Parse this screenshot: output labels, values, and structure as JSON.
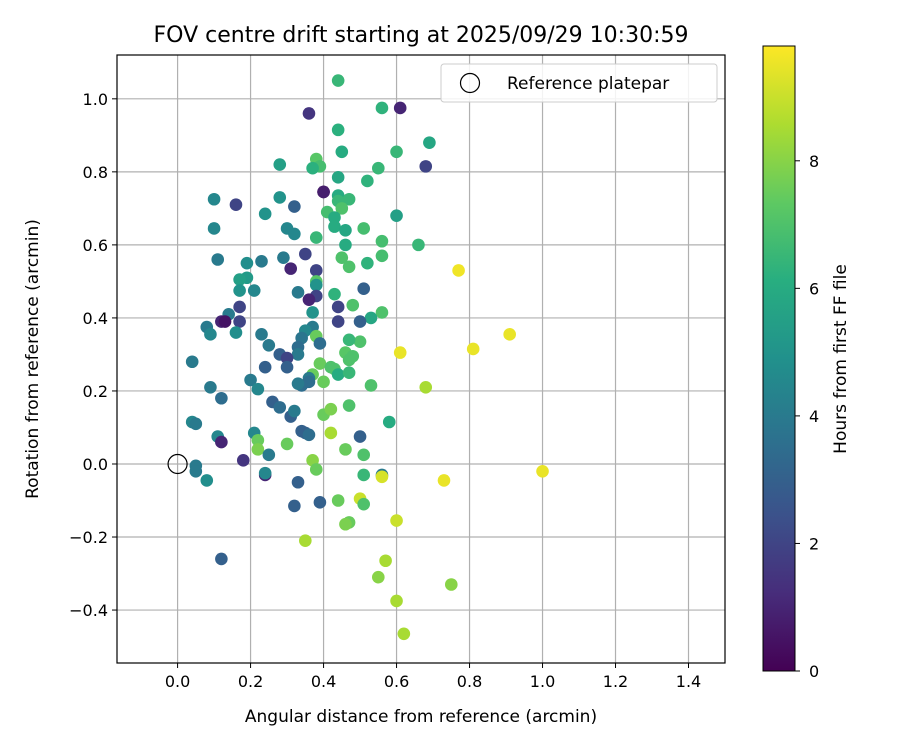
{
  "chart_data": {
    "type": "scatter",
    "title": "FOV centre drift starting at 2025/09/29 10:30:59",
    "xlabel": "Angular distance from reference (arcmin)",
    "ylabel": "Rotation from reference (arcmin)",
    "xlim": [
      -0.166,
      1.5
    ],
    "ylim": [
      -0.545,
      1.12
    ],
    "xticks": [
      0.0,
      0.2,
      0.4,
      0.6,
      0.8,
      1.0,
      1.2,
      1.4
    ],
    "xtick_labels": [
      "0.0",
      "0.2",
      "0.4",
      "0.6",
      "0.8",
      "1.0",
      "1.2",
      "1.4"
    ],
    "yticks": [
      -0.4,
      -0.2,
      0.0,
      0.2,
      0.4,
      0.6,
      0.8,
      1.0
    ],
    "ytick_labels": [
      "−0.4",
      "−0.2",
      "0.0",
      "0.2",
      "0.4",
      "0.6",
      "0.8",
      "1.0"
    ],
    "grid": true,
    "legend": {
      "position": "top-right",
      "entries": [
        "Reference platepar"
      ]
    },
    "reference_point": {
      "x": 0.0,
      "y": 0.0
    },
    "colorbar": {
      "label": "Hours from first FF file",
      "range": [
        0,
        9.8
      ],
      "ticks": [
        0,
        2,
        4,
        6,
        8
      ],
      "tick_labels": [
        "0",
        "2",
        "4",
        "6",
        "8"
      ],
      "colormap": "viridis"
    },
    "points": [
      [
        0.44,
        1.05,
        6.5
      ],
      [
        0.56,
        0.975,
        6.3
      ],
      [
        0.61,
        0.975,
        1.0
      ],
      [
        0.36,
        0.96,
        1.5
      ],
      [
        0.44,
        0.915,
        6.2
      ],
      [
        0.69,
        0.88,
        5.8
      ],
      [
        0.6,
        0.855,
        6.5
      ],
      [
        0.45,
        0.855,
        6.0
      ],
      [
        0.38,
        0.835,
        7.2
      ],
      [
        0.28,
        0.82,
        5.5
      ],
      [
        0.39,
        0.815,
        6.8
      ],
      [
        0.37,
        0.81,
        6.2
      ],
      [
        0.55,
        0.81,
        6.5
      ],
      [
        0.68,
        0.815,
        2.0
      ],
      [
        0.44,
        0.785,
        5.8
      ],
      [
        0.52,
        0.775,
        6.3
      ],
      [
        0.4,
        0.745,
        0.2
      ],
      [
        0.4,
        0.745,
        0.8
      ],
      [
        0.28,
        0.73,
        5.0
      ],
      [
        0.1,
        0.725,
        4.5
      ],
      [
        0.44,
        0.735,
        6.0
      ],
      [
        0.47,
        0.725,
        6.5
      ],
      [
        0.44,
        0.72,
        6.5
      ],
      [
        0.45,
        0.7,
        7.0
      ],
      [
        0.16,
        0.71,
        2.0
      ],
      [
        0.32,
        0.705,
        3.0
      ],
      [
        0.41,
        0.69,
        6.8
      ],
      [
        0.24,
        0.685,
        5.0
      ],
      [
        0.6,
        0.68,
        5.5
      ],
      [
        0.43,
        0.675,
        6.0
      ],
      [
        0.1,
        0.645,
        4.5
      ],
      [
        0.3,
        0.645,
        4.5
      ],
      [
        0.43,
        0.65,
        6.0
      ],
      [
        0.46,
        0.64,
        5.8
      ],
      [
        0.51,
        0.645,
        6.8
      ],
      [
        0.32,
        0.63,
        4.5
      ],
      [
        0.38,
        0.62,
        6.5
      ],
      [
        0.46,
        0.6,
        6.0
      ],
      [
        0.56,
        0.61,
        6.8
      ],
      [
        0.66,
        0.6,
        6.5
      ],
      [
        0.11,
        0.56,
        4.0
      ],
      [
        0.23,
        0.555,
        4.0
      ],
      [
        0.19,
        0.55,
        4.8
      ],
      [
        0.45,
        0.565,
        7.0
      ],
      [
        0.29,
        0.565,
        4.0
      ],
      [
        0.35,
        0.575,
        2.0
      ],
      [
        0.52,
        0.55,
        6.3
      ],
      [
        0.56,
        0.57,
        6.8
      ],
      [
        0.31,
        0.535,
        1.0
      ],
      [
        0.47,
        0.54,
        7.0
      ],
      [
        0.38,
        0.53,
        2.0
      ],
      [
        0.77,
        0.53,
        9.6
      ],
      [
        0.19,
        0.51,
        5.3
      ],
      [
        0.17,
        0.505,
        5.5
      ],
      [
        0.38,
        0.5,
        7.2
      ],
      [
        0.38,
        0.49,
        5.0
      ],
      [
        0.21,
        0.475,
        4.5
      ],
      [
        0.17,
        0.475,
        5.0
      ],
      [
        0.33,
        0.47,
        4.0
      ],
      [
        0.38,
        0.46,
        2.0
      ],
      [
        0.36,
        0.45,
        1.0
      ],
      [
        0.43,
        0.465,
        6.3
      ],
      [
        0.51,
        0.48,
        3.0
      ],
      [
        0.48,
        0.435,
        7.0
      ],
      [
        0.17,
        0.43,
        2.0
      ],
      [
        0.44,
        0.43,
        2.0
      ],
      [
        0.56,
        0.415,
        7.0
      ],
      [
        0.37,
        0.415,
        5.0
      ],
      [
        0.53,
        0.4,
        5.8
      ],
      [
        0.14,
        0.41,
        4.0
      ],
      [
        0.17,
        0.39,
        2.0
      ],
      [
        0.44,
        0.39,
        2.0
      ],
      [
        0.5,
        0.39,
        3.0
      ],
      [
        0.08,
        0.375,
        4.0
      ],
      [
        0.37,
        0.375,
        4.0
      ],
      [
        0.12,
        0.39,
        1.0
      ],
      [
        0.13,
        0.39,
        0.5
      ],
      [
        0.16,
        0.36,
        4.8
      ],
      [
        0.35,
        0.365,
        4.5
      ],
      [
        0.38,
        0.35,
        7.5
      ],
      [
        0.09,
        0.355,
        4.5
      ],
      [
        0.23,
        0.355,
        4.0
      ],
      [
        0.34,
        0.345,
        3.8
      ],
      [
        0.39,
        0.33,
        3.5
      ],
      [
        0.5,
        0.335,
        7.0
      ],
      [
        0.33,
        0.32,
        3.5
      ],
      [
        0.25,
        0.325,
        4.0
      ],
      [
        0.47,
        0.34,
        6.5
      ],
      [
        0.33,
        0.3,
        4.0
      ],
      [
        0.46,
        0.305,
        7.2
      ],
      [
        0.61,
        0.305,
        9.5
      ],
      [
        0.81,
        0.315,
        9.5
      ],
      [
        0.91,
        0.355,
        9.5
      ],
      [
        0.28,
        0.3,
        3.0
      ],
      [
        0.3,
        0.29,
        2.0
      ],
      [
        0.48,
        0.295,
        7.0
      ],
      [
        0.47,
        0.285,
        7.0
      ],
      [
        0.04,
        0.28,
        4.0
      ],
      [
        0.24,
        0.265,
        3.0
      ],
      [
        0.3,
        0.265,
        3.0
      ],
      [
        0.39,
        0.275,
        7.5
      ],
      [
        0.42,
        0.265,
        7.0
      ],
      [
        0.43,
        0.26,
        7.0
      ],
      [
        0.44,
        0.245,
        6.0
      ],
      [
        0.47,
        0.25,
        6.5
      ],
      [
        0.37,
        0.245,
        7.5
      ],
      [
        0.36,
        0.235,
        4.0
      ],
      [
        0.36,
        0.225,
        3.5
      ],
      [
        0.34,
        0.215,
        3.5
      ],
      [
        0.33,
        0.22,
        4.0
      ],
      [
        0.2,
        0.23,
        4.0
      ],
      [
        0.22,
        0.205,
        4.5
      ],
      [
        0.09,
        0.21,
        4.0
      ],
      [
        0.4,
        0.225,
        7.5
      ],
      [
        0.53,
        0.215,
        7.0
      ],
      [
        0.68,
        0.21,
        8.5
      ],
      [
        0.12,
        0.18,
        3.5
      ],
      [
        0.26,
        0.17,
        3.0
      ],
      [
        0.28,
        0.155,
        3.5
      ],
      [
        0.31,
        0.13,
        3.0
      ],
      [
        0.32,
        0.145,
        4.0
      ],
      [
        0.4,
        0.135,
        7.5
      ],
      [
        0.42,
        0.15,
        7.8
      ],
      [
        0.47,
        0.16,
        7.0
      ],
      [
        0.34,
        0.09,
        3.0
      ],
      [
        0.35,
        0.085,
        3.0
      ],
      [
        0.36,
        0.08,
        3.5
      ],
      [
        0.21,
        0.085,
        4.5
      ],
      [
        0.42,
        0.085,
        8.5
      ],
      [
        0.04,
        0.115,
        4.5
      ],
      [
        0.05,
        0.11,
        4.0
      ],
      [
        0.11,
        0.075,
        4.5
      ],
      [
        0.12,
        0.06,
        1.0
      ],
      [
        0.22,
        0.065,
        7.5
      ],
      [
        0.3,
        0.055,
        7.5
      ],
      [
        0.5,
        0.075,
        3.0
      ],
      [
        0.58,
        0.115,
        6.0
      ],
      [
        0.46,
        0.04,
        7.5
      ],
      [
        0.22,
        0.04,
        7.8
      ],
      [
        0.25,
        0.025,
        4.0
      ],
      [
        0.51,
        0.025,
        7.0
      ],
      [
        0.18,
        0.01,
        1.5
      ],
      [
        0.37,
        0.01,
        8.0
      ],
      [
        0.05,
        -0.005,
        4.0
      ],
      [
        0.38,
        -0.015,
        7.5
      ],
      [
        0.05,
        -0.02,
        4.0
      ],
      [
        0.24,
        -0.03,
        1.0
      ],
      [
        0.24,
        -0.025,
        4.5
      ],
      [
        0.51,
        -0.03,
        6.5
      ],
      [
        0.56,
        -0.03,
        4.0
      ],
      [
        0.56,
        -0.035,
        9.2
      ],
      [
        0.08,
        -0.045,
        4.8
      ],
      [
        0.33,
        -0.05,
        3.0
      ],
      [
        0.73,
        -0.045,
        9.5
      ],
      [
        1.0,
        -0.02,
        9.5
      ],
      [
        0.5,
        -0.095,
        9.0
      ],
      [
        0.44,
        -0.1,
        7.5
      ],
      [
        0.51,
        -0.11,
        7.0
      ],
      [
        0.32,
        -0.115,
        3.0
      ],
      [
        0.39,
        -0.105,
        3.0
      ],
      [
        0.6,
        -0.155,
        9.0
      ],
      [
        0.47,
        -0.16,
        7.5
      ],
      [
        0.46,
        -0.165,
        7.8
      ],
      [
        0.35,
        -0.21,
        8.5
      ],
      [
        0.57,
        -0.265,
        8.5
      ],
      [
        0.12,
        -0.26,
        3.0
      ],
      [
        0.55,
        -0.31,
        8.0
      ],
      [
        0.75,
        -0.33,
        8.0
      ],
      [
        0.6,
        -0.375,
        8.5
      ],
      [
        0.62,
        -0.465,
        8.5
      ]
    ]
  }
}
